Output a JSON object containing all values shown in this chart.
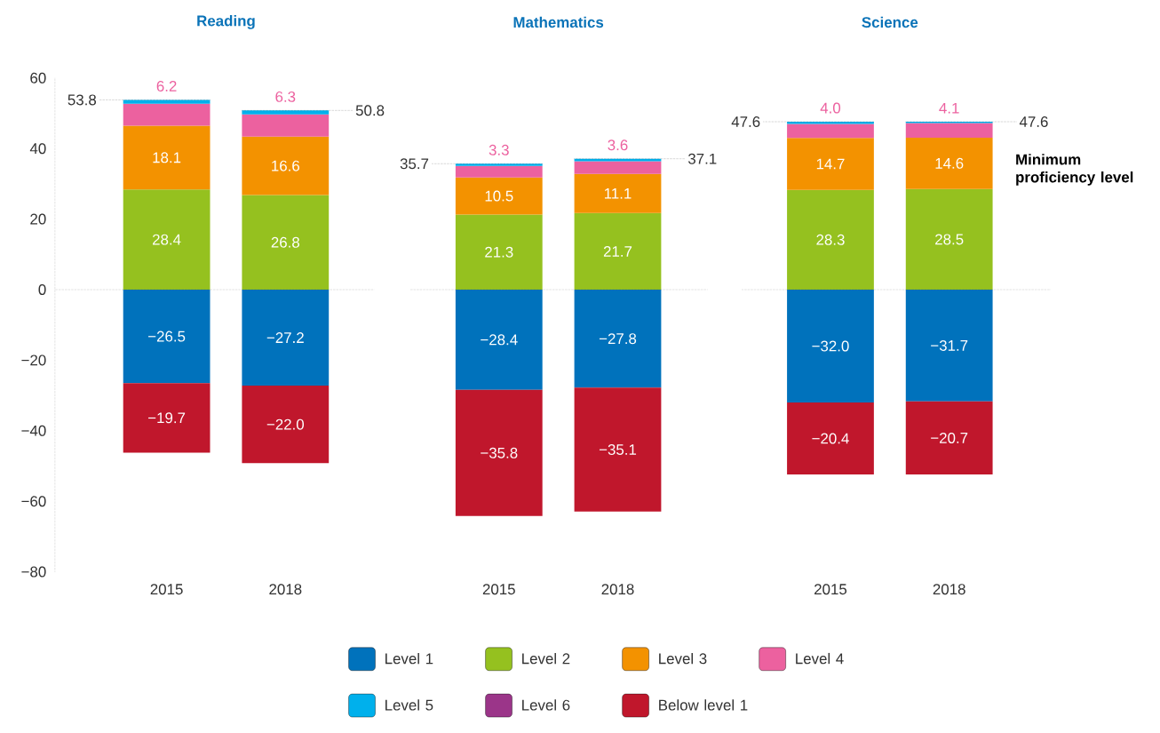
{
  "chart_data": [
    {
      "type": "bar",
      "title": "Reading",
      "categories": [
        "2015",
        "2018"
      ],
      "stacked": true,
      "legend": "bottom",
      "ylim": [
        -80,
        60
      ],
      "yticks": [
        {
          "value": -80,
          "label": "−80"
        },
        {
          "value": -60,
          "label": "−60"
        },
        {
          "value": -40,
          "label": "−40"
        },
        {
          "value": -20,
          "label": "−20"
        },
        0,
        20,
        40,
        60
      ],
      "ref_lines": [
        {
          "axis": "y",
          "value": 0,
          "line_style": "dotted"
        }
      ],
      "annotations": [
        {
          "text": "53.8",
          "x": "2015",
          "y": 53.8
        },
        {
          "text": "50.8",
          "x": "2018",
          "y": 50.8
        }
      ],
      "series": [
        {
          "name": "Level 1",
          "color": "#0072bc",
          "values": [
            -26.5,
            -27.2
          ],
          "value_labels": [
            "−26.5",
            "−27.2"
          ]
        },
        {
          "name": "Level 2",
          "color": "#95c11f",
          "values": [
            28.4,
            26.8
          ],
          "value_labels": [
            "28.4",
            "26.8"
          ]
        },
        {
          "name": "Level 3",
          "color": "#f39200",
          "values": [
            18.1,
            16.6
          ],
          "value_labels": [
            "18.1",
            "16.6"
          ]
        },
        {
          "name": "Level 4",
          "color": "#ec619f",
          "values": [
            6.2,
            6.3
          ],
          "value_labels": [
            "6.2",
            "6.3"
          ]
        },
        {
          "name": "Level 5",
          "color": "#00b0ec",
          "values": [
            1.1,
            1.1
          ]
        },
        {
          "name": "Level 6",
          "color": "#9b3589",
          "values": [
            null,
            null
          ]
        },
        {
          "name": "Below level 1",
          "color": "#c0172c",
          "values": [
            -19.7,
            -22.0
          ],
          "value_labels": [
            "−19.7",
            "−22.0"
          ]
        }
      ]
    },
    {
      "type": "bar",
      "title": "Mathematics",
      "categories": [
        "2015",
        "2018"
      ],
      "stacked": true,
      "tick_labels": "x",
      "ylim": [
        -80,
        60
      ],
      "ref_lines": [
        {
          "axis": "y",
          "value": 0,
          "line_style": "dotted"
        }
      ],
      "annotations": [
        {
          "text": "35.7",
          "x": "2015",
          "y": 35.7
        },
        {
          "text": "37.1",
          "x": "2018",
          "y": 37.1
        }
      ],
      "series": [
        {
          "color": "#0072bc",
          "values": [
            -28.4,
            -27.8
          ],
          "value_labels": [
            "−28.4",
            "−27.8"
          ]
        },
        {
          "color": "#95c11f",
          "values": [
            21.3,
            21.7
          ],
          "value_labels": [
            "21.3",
            "21.7"
          ]
        },
        {
          "color": "#f39200",
          "values": [
            10.5,
            11.1
          ],
          "value_labels": [
            "10.5",
            "11.1"
          ]
        },
        {
          "color": "#ec619f",
          "values": [
            3.3,
            3.6
          ],
          "value_labels": [
            "3.3",
            "3.6"
          ]
        },
        {
          "color": "#00b0ec",
          "values": [
            0.6,
            0.7
          ]
        },
        {
          "color": "#9b3589",
          "values": [
            null,
            null
          ]
        },
        {
          "color": "#c0172c",
          "values": [
            -35.8,
            -35.1
          ],
          "value_labels": [
            "−35.8",
            "−35.1"
          ]
        }
      ]
    },
    {
      "type": "bar",
      "title": "Science",
      "categories": [
        "2015",
        "2018"
      ],
      "stacked": true,
      "tick_labels": "x",
      "ylim": [
        -80,
        60
      ],
      "ref_lines": [
        {
          "axis": "y",
          "value": 0,
          "line_style": "dotted"
        }
      ],
      "annotations": [
        {
          "text": "47.6",
          "x": "2015",
          "y": 47.6
        },
        {
          "text": "47.6",
          "x": "2018",
          "y": 47.6
        },
        "Minimum proficiency level"
      ],
      "series": [
        {
          "color": "#0072bc",
          "values": [
            -32.0,
            -31.7
          ],
          "value_labels": [
            "−32.0",
            "−31.7"
          ]
        },
        {
          "color": "#95c11f",
          "values": [
            28.3,
            28.5
          ],
          "value_labels": [
            "28.3",
            "28.5"
          ]
        },
        {
          "color": "#f39200",
          "values": [
            14.7,
            14.6
          ],
          "value_labels": [
            "14.7",
            "14.6"
          ]
        },
        {
          "color": "#ec619f",
          "values": [
            4.0,
            4.1
          ],
          "value_labels": [
            "4.0",
            "4.1"
          ]
        },
        {
          "color": "#00b0ec",
          "values": [
            0.6,
            0.4
          ]
        },
        {
          "color": "#9b3589",
          "values": [
            null,
            null
          ]
        },
        {
          "color": "#c0172c",
          "values": [
            -20.4,
            -20.7
          ],
          "value_labels": [
            "−20.4",
            "−20.7"
          ]
        }
      ]
    }
  ]
}
